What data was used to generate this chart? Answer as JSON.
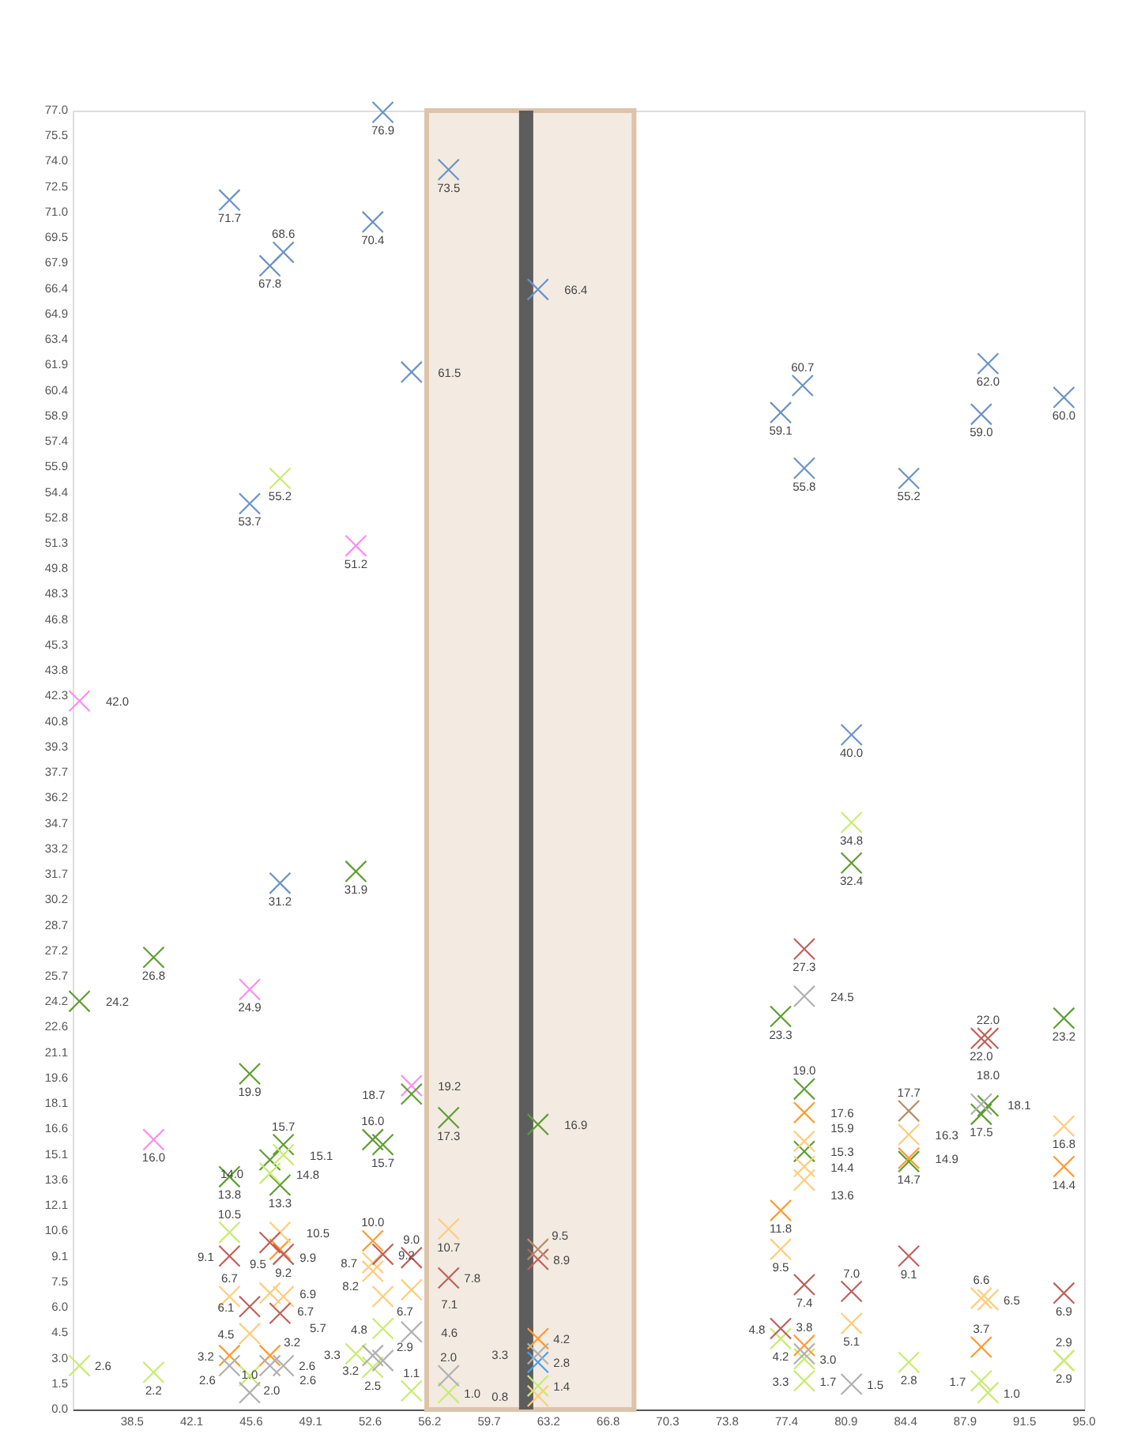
{
  "chart_data": {
    "type": "scatter",
    "marker": "cross",
    "legend": false,
    "grid": false,
    "xlim": [
      35,
      95
    ],
    "ylim": [
      0,
      77
    ],
    "xticks": [
      {
        "value": 38.5294,
        "label": "38.5"
      },
      {
        "value": 42.0588,
        "label": "42.1"
      },
      {
        "value": 45.5882,
        "label": "45.6"
      },
      {
        "value": 49.1176,
        "label": "49.1"
      },
      {
        "value": 52.6471,
        "label": "52.6"
      },
      {
        "value": 56.1765,
        "label": "56.2"
      },
      {
        "value": 59.7059,
        "label": "59.7"
      },
      {
        "value": 63.2353,
        "label": "63.2"
      },
      {
        "value": 66.7647,
        "label": "66.8"
      },
      {
        "value": 70.2941,
        "label": "70.3"
      },
      {
        "value": 73.8235,
        "label": "73.8"
      },
      {
        "value": 77.3529,
        "label": "77.4"
      },
      {
        "value": 80.8824,
        "label": "80.9"
      },
      {
        "value": 84.4118,
        "label": "84.4"
      },
      {
        "value": 87.9412,
        "label": "87.9"
      },
      {
        "value": 91.4706,
        "label": "91.5"
      },
      {
        "value": 95,
        "label": "95.0"
      }
    ],
    "yticks": [
      {
        "value": 0,
        "label": "0.0"
      },
      {
        "value": 1.5098,
        "label": "1.5"
      },
      {
        "value": 3.0196,
        "label": "3.0"
      },
      {
        "value": 4.5294,
        "label": "4.5"
      },
      {
        "value": 6.0392,
        "label": "6.0"
      },
      {
        "value": 7.549,
        "label": "7.5"
      },
      {
        "value": 9.0588,
        "label": "9.1"
      },
      {
        "value": 10.5686,
        "label": "10.6"
      },
      {
        "value": 12.0784,
        "label": "12.1"
      },
      {
        "value": 13.5882,
        "label": "13.6"
      },
      {
        "value": 15.098,
        "label": "15.1"
      },
      {
        "value": 16.6078,
        "label": "16.6"
      },
      {
        "value": 18.1176,
        "label": "18.1"
      },
      {
        "value": 19.6275,
        "label": "19.6"
      },
      {
        "value": 21.1373,
        "label": "21.1"
      },
      {
        "value": 22.6471,
        "label": "22.6"
      },
      {
        "value": 24.1569,
        "label": "24.2"
      },
      {
        "value": 25.6667,
        "label": "25.7"
      },
      {
        "value": 27.1765,
        "label": "27.2"
      },
      {
        "value": 28.6863,
        "label": "28.7"
      },
      {
        "value": 30.1961,
        "label": "30.2"
      },
      {
        "value": 31.7059,
        "label": "31.7"
      },
      {
        "value": 33.2157,
        "label": "33.2"
      },
      {
        "value": 34.7255,
        "label": "34.7"
      },
      {
        "value": 36.2353,
        "label": "36.2"
      },
      {
        "value": 37.7451,
        "label": "37.7"
      },
      {
        "value": 39.2549,
        "label": "39.3"
      },
      {
        "value": 40.7647,
        "label": "40.8"
      },
      {
        "value": 42.2745,
        "label": "42.3"
      },
      {
        "value": 43.7843,
        "label": "43.8"
      },
      {
        "value": 45.2941,
        "label": "45.3"
      },
      {
        "value": 46.8039,
        "label": "46.8"
      },
      {
        "value": 48.3137,
        "label": "48.3"
      },
      {
        "value": 49.8235,
        "label": "49.8"
      },
      {
        "value": 51.3333,
        "label": "51.3"
      },
      {
        "value": 52.8431,
        "label": "52.8"
      },
      {
        "value": 54.3529,
        "label": "54.4"
      },
      {
        "value": 55.8627,
        "label": "55.9"
      },
      {
        "value": 57.3725,
        "label": "57.4"
      },
      {
        "value": 58.8824,
        "label": "58.9"
      },
      {
        "value": 60.3922,
        "label": "60.4"
      },
      {
        "value": 61.902,
        "label": "61.9"
      },
      {
        "value": 63.4118,
        "label": "63.4"
      },
      {
        "value": 64.9216,
        "label": "64.9"
      },
      {
        "value": 66.4314,
        "label": "66.4"
      },
      {
        "value": 67.9412,
        "label": "67.9"
      },
      {
        "value": 69.451,
        "label": "69.5"
      },
      {
        "value": 70.9608,
        "label": "71.0"
      },
      {
        "value": 72.4706,
        "label": "72.5"
      },
      {
        "value": 73.9804,
        "label": "74.0"
      },
      {
        "value": 75.4902,
        "label": "75.5"
      },
      {
        "value": 77,
        "label": "77.0"
      }
    ],
    "bands": [
      {
        "axis": "x",
        "from": 56.0,
        "to": 68.3,
        "color": "#dcc4ab"
      }
    ],
    "ref_lines": [
      {
        "axis": "x",
        "value": 61.9,
        "color": "#555555"
      }
    ],
    "series": [
      {
        "color": "#6b93c6",
        "x": [
          53.4,
          44.3,
          52.8,
          47.5,
          46.7,
          57.3,
          62.6,
          55.1,
          45.5,
          47.3,
          78.3,
          77.0,
          78.4,
          84.6,
          89.3,
          88.9,
          93.8,
          81.2
        ],
        "values": [
          76.9,
          71.7,
          70.4,
          68.6,
          67.8,
          73.5,
          66.4,
          61.5,
          53.7,
          31.2,
          60.7,
          59.1,
          55.8,
          55.2,
          62.0,
          59.0,
          60.0,
          40.0
        ],
        "value_labels": [
          "76.9",
          "71.7",
          "70.4",
          "68.6",
          "67.8",
          "73.5",
          "66.4",
          "61.5",
          "53.7",
          "31.2",
          "60.7",
          "59.1",
          "55.8",
          "55.2",
          "62.0",
          "59.0",
          "60.0",
          "40.0"
        ]
      },
      {
        "color": "#4aa0f0",
        "x": [
          62.6
        ],
        "values": [
          2.8
        ],
        "value_labels": [
          "2.8"
        ]
      },
      {
        "color": "#ff8cf0",
        "x": [
          51.8,
          35.4,
          45.5,
          39.8,
          55.1
        ],
        "values": [
          51.2,
          42.0,
          24.9,
          16.0,
          19.2
        ],
        "value_labels": [
          "51.2",
          "42.0",
          "24.9",
          "16.0",
          "19.2"
        ]
      },
      {
        "color": "#5f9e32",
        "x": [
          51.8,
          39.8,
          35.4,
          45.5,
          55.1,
          57.3,
          62.6,
          44.3,
          47.5,
          46.7,
          47.3,
          52.8,
          53.4,
          81.2,
          77.0,
          78.4,
          78.4,
          84.6,
          88.9,
          89.3,
          93.8
        ],
        "values": [
          31.9,
          26.8,
          24.2,
          19.9,
          18.7,
          17.3,
          16.9,
          13.8,
          15.7,
          14.8,
          13.3,
          16.0,
          15.7,
          32.4,
          23.3,
          19.0,
          15.3,
          14.7,
          17.5,
          18.0,
          23.2
        ],
        "value_labels": [
          "31.9",
          "26.8",
          "24.2",
          "19.9",
          "18.7",
          "17.3",
          "16.9",
          "13.8",
          "15.7",
          "14.8",
          "13.3",
          "16.0",
          "15.7",
          "32.4",
          "23.3",
          "19.0",
          "15.3",
          "14.7",
          "17.5",
          "18.0",
          "23.2"
        ]
      },
      {
        "color": "#c8ec6e",
        "x": [
          47.3,
          47.5,
          46.7,
          44.3,
          53.4,
          51.8,
          52.8,
          55.1,
          57.3,
          35.4,
          39.8,
          45.5,
          62.6,
          81.2,
          77.0,
          78.4,
          78.4,
          84.6,
          88.9,
          89.3,
          93.8,
          93.8
        ],
        "values": [
          55.2,
          15.1,
          14.0,
          10.5,
          4.8,
          3.3,
          2.5,
          1.1,
          1.0,
          2.6,
          2.2,
          2.0,
          1.4,
          34.8,
          4.2,
          3.0,
          1.7,
          2.8,
          1.7,
          1.0,
          2.9,
          2.9
        ],
        "value_labels": [
          "55.2",
          "15.1",
          "14.0",
          "10.5",
          "4.8",
          "3.3",
          "2.5",
          "1.1",
          "1.0",
          "2.6",
          "2.2",
          "2.0",
          "1.4",
          "34.8",
          "4.2",
          "3.0",
          "1.7",
          "2.8",
          "1.7",
          "1.0",
          "2.9",
          "2.9"
        ]
      },
      {
        "color": "#ff9a2e",
        "x": [
          44.3,
          47.3,
          46.7,
          52.8,
          62.6,
          78.4,
          77.0,
          78.4,
          84.6,
          88.9,
          93.8
        ],
        "values": [
          3.2,
          9.5,
          3.2,
          10.0,
          4.2,
          17.6,
          11.8,
          3.8,
          14.9,
          3.7,
          14.4
        ],
        "value_labels": [
          "3.2",
          "9.5",
          "3.2",
          "10.0",
          "4.2",
          "17.6",
          "11.8",
          "3.8",
          "14.9",
          "3.7",
          "14.4"
        ]
      },
      {
        "color": "#ffcc7a",
        "x": [
          44.3,
          47.3,
          46.7,
          47.5,
          45.5,
          52.8,
          52.8,
          53.4,
          55.1,
          57.3,
          62.6,
          78.4,
          78.4,
          78.4,
          77.0,
          81.2,
          84.6,
          88.9,
          89.3,
          93.8
        ],
        "values": [
          6.7,
          10.5,
          6.9,
          6.7,
          4.5,
          8.7,
          8.2,
          6.7,
          7.1,
          10.7,
          0.8,
          15.9,
          14.4,
          13.6,
          9.5,
          5.1,
          16.3,
          6.6,
          6.5,
          16.8
        ],
        "value_labels": [
          "6.7",
          "10.5",
          "6.9",
          "6.7",
          "4.5",
          "8.7",
          "8.2",
          "6.7",
          "7.1",
          "10.7",
          "0.8",
          "15.9",
          "14.4",
          "13.6",
          "9.5",
          "5.1",
          "16.3",
          "6.6",
          "6.5",
          "16.8"
        ]
      },
      {
        "color": "#c0605a",
        "x": [
          44.3,
          46.7,
          47.5,
          45.5,
          47.3,
          53.4,
          55.1,
          57.3,
          62.6,
          78.4,
          78.4,
          77.0,
          81.2,
          84.6,
          88.9,
          89.3,
          93.8
        ],
        "values": [
          9.1,
          9.9,
          9.2,
          6.1,
          5.7,
          9.2,
          9.0,
          7.8,
          8.9,
          27.3,
          7.4,
          4.8,
          7.0,
          9.1,
          22.0,
          22.0,
          6.9
        ],
        "value_labels": [
          "9.1",
          "9.9",
          "9.2",
          "6.1",
          "5.7",
          "9.2",
          "9.0",
          "7.8",
          "8.9",
          "27.3",
          "7.4",
          "4.8",
          "7.0",
          "9.1",
          "22.0",
          "22.0",
          "6.9"
        ]
      },
      {
        "color": "#b0b0b0",
        "x": [
          44.3,
          46.7,
          47.5,
          45.5,
          52.8,
          53.4,
          55.1,
          57.3,
          62.6,
          78.4,
          78.4,
          81.2,
          88.9
        ],
        "values": [
          2.6,
          2.6,
          2.6,
          1.0,
          3.2,
          2.9,
          4.6,
          2.0,
          3.3,
          24.5,
          3.3,
          1.5,
          18.1
        ],
        "value_labels": [
          "2.6",
          "2.6",
          "2.6",
          "1.0",
          "3.2",
          "2.9",
          "4.6",
          "2.0",
          "3.3",
          "24.5",
          "3.3",
          "1.5",
          "18.1"
        ]
      },
      {
        "color": "#b88e6a",
        "x": [
          62.6,
          84.6
        ],
        "values": [
          9.5,
          17.7
        ],
        "value_labels": [
          "9.5",
          "17.7"
        ]
      }
    ]
  }
}
